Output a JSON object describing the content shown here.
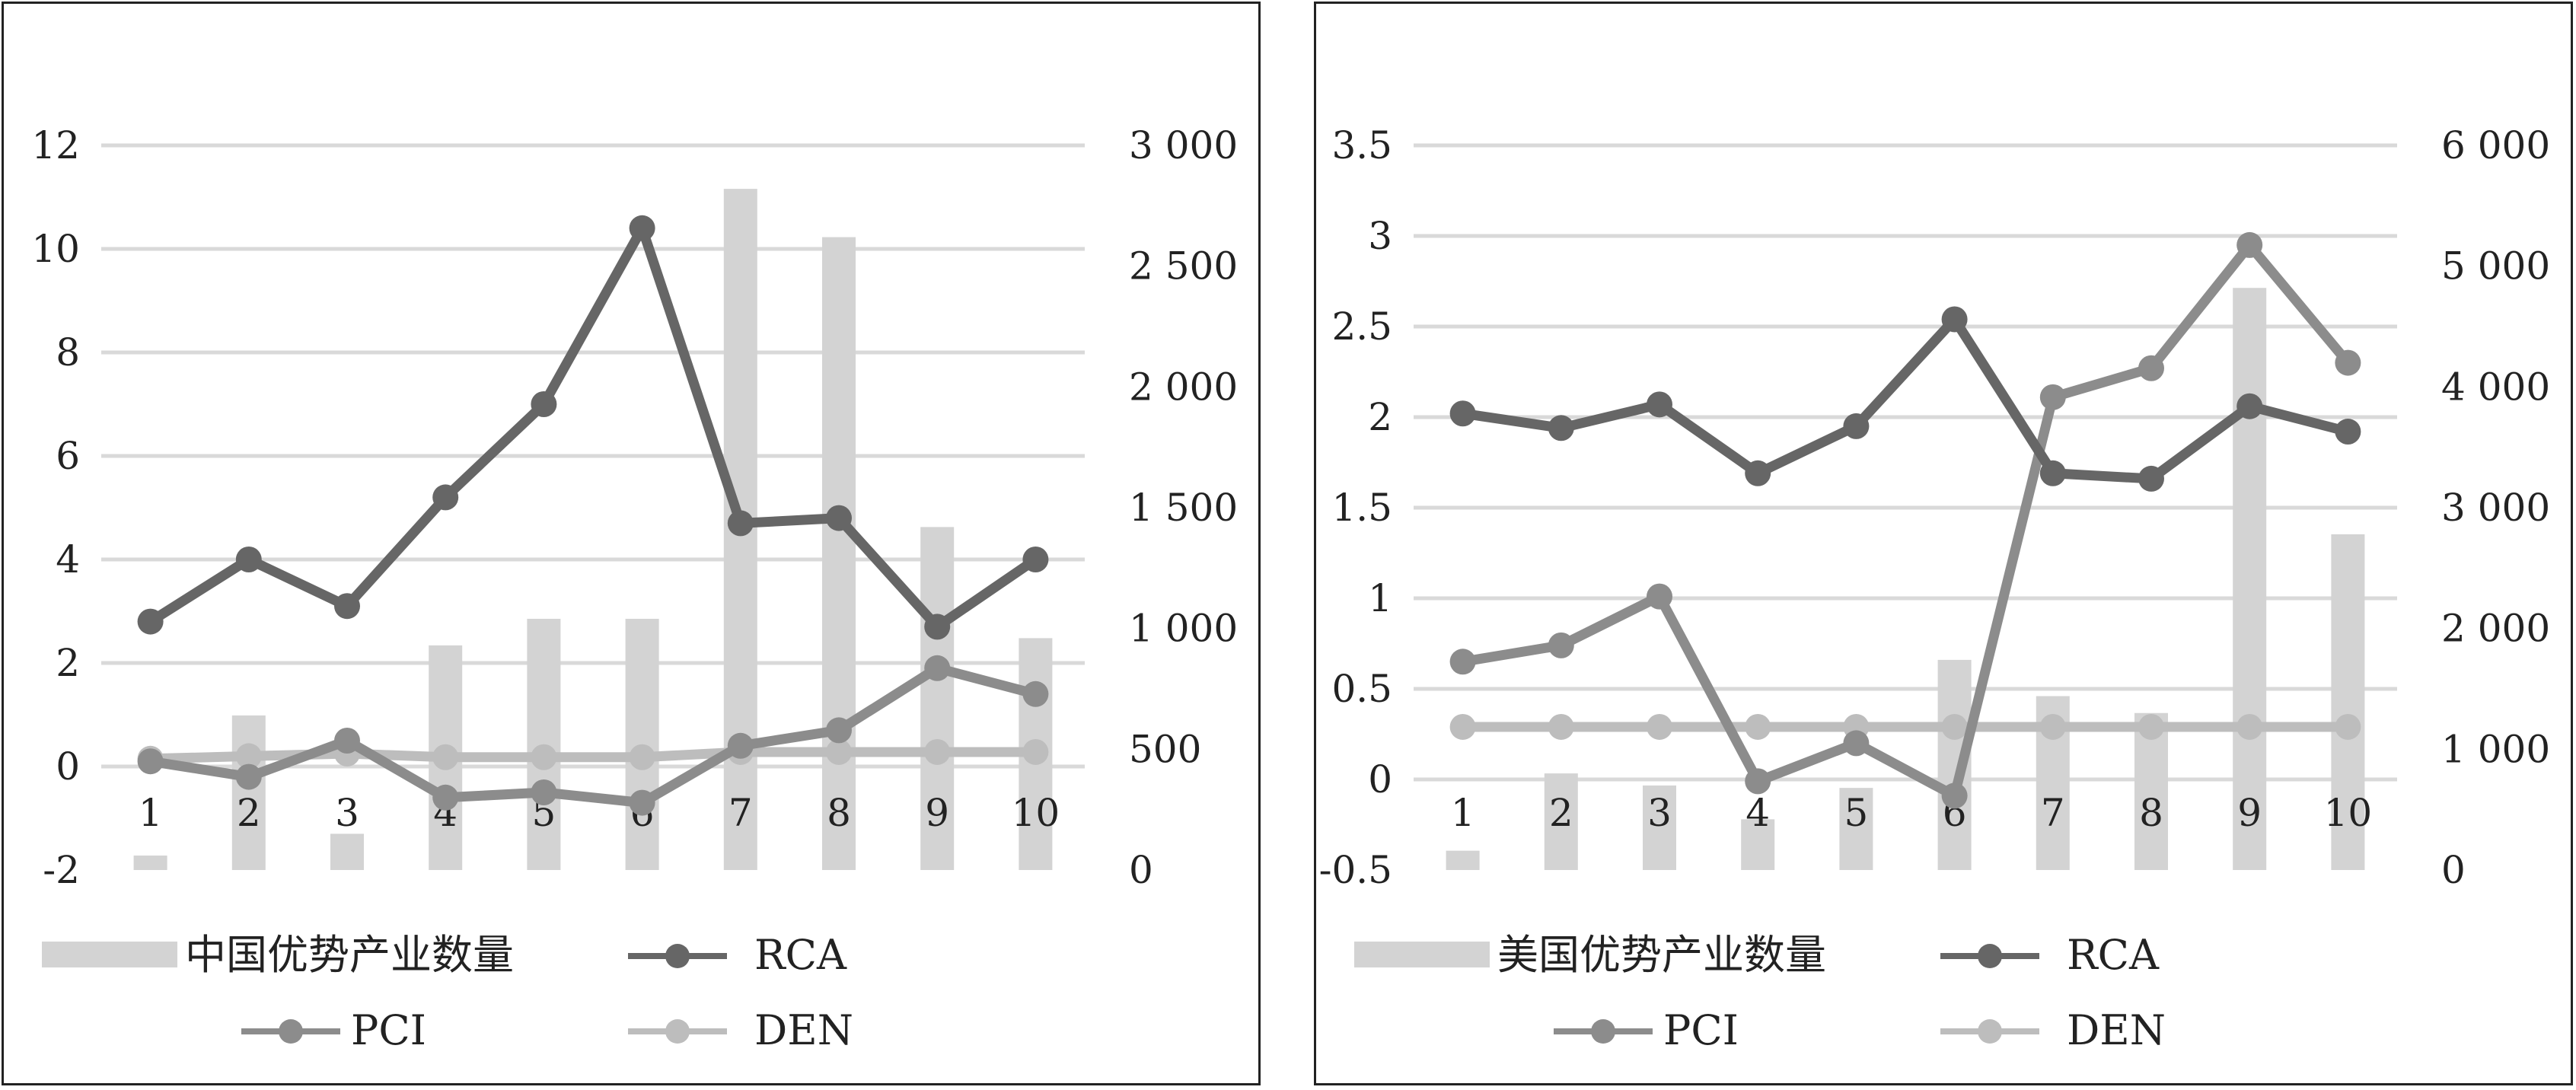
{
  "colors": {
    "bar": "#d3d3d3",
    "grid": "#d9d9d9",
    "rca": "#666666",
    "pci": "#8c8c8c",
    "den": "#bdbdbd",
    "text": "#222222"
  },
  "chart_data": [
    {
      "type": "bar+line",
      "categories": [
        "1",
        "2",
        "3",
        "4",
        "5",
        "6",
        "7",
        "8",
        "9",
        "10"
      ],
      "bar_series": {
        "name": "中国优势产业数量",
        "values": [
          60,
          640,
          150,
          930,
          1040,
          1040,
          2820,
          2620,
          1420,
          960
        ],
        "axis": "right"
      },
      "line_series": [
        {
          "name": "RCA",
          "values": [
            2.8,
            4.0,
            3.1,
            5.2,
            7.0,
            10.4,
            4.7,
            4.8,
            2.7,
            4.0
          ],
          "axis": "left"
        },
        {
          "name": "PCI",
          "values": [
            0.1,
            -0.2,
            0.5,
            -0.6,
            -0.5,
            -0.7,
            0.4,
            0.7,
            1.9,
            1.4
          ],
          "axis": "left"
        },
        {
          "name": "DEN",
          "values": [
            0.15,
            0.2,
            0.25,
            0.18,
            0.18,
            0.18,
            0.28,
            0.28,
            0.28,
            0.28
          ],
          "axis": "left"
        }
      ],
      "y_left": {
        "ticks": [
          12,
          10,
          8,
          6,
          4,
          2,
          0,
          -2
        ],
        "tick_labels": [
          "12",
          "10",
          "8",
          "6",
          "4",
          "2",
          "0",
          "-2"
        ],
        "range": [
          -2,
          12
        ]
      },
      "y_right": {
        "ticks": [
          3000,
          2500,
          2000,
          1500,
          1000,
          500,
          0
        ],
        "tick_labels": [
          "3 000",
          "2 500",
          "2 000",
          "1 500",
          "1 000",
          "500",
          "0"
        ],
        "range": [
          0,
          3000
        ]
      },
      "grid": true,
      "legend": "bottom",
      "legend_labels": {
        "bar": "中国优势产业数量",
        "rca": "RCA",
        "pci": "PCI",
        "den": "DEN"
      }
    },
    {
      "type": "bar+line",
      "categories": [
        "1",
        "2",
        "3",
        "4",
        "5",
        "6",
        "7",
        "8",
        "9",
        "10"
      ],
      "bar_series": {
        "name": "美国优势产业数量",
        "values": [
          160,
          800,
          700,
          420,
          680,
          1740,
          1440,
          1300,
          4820,
          2780
        ],
        "axis": "right"
      },
      "line_series": [
        {
          "name": "RCA",
          "values": [
            2.02,
            1.94,
            2.07,
            1.69,
            1.95,
            2.54,
            1.69,
            1.66,
            2.06,
            1.92
          ],
          "axis": "left"
        },
        {
          "name": "PCI",
          "values": [
            0.65,
            0.74,
            1.01,
            -0.01,
            0.2,
            -0.09,
            2.11,
            2.27,
            2.95,
            2.3
          ],
          "axis": "left"
        },
        {
          "name": "DEN",
          "values": [
            0.29,
            0.29,
            0.29,
            0.29,
            0.29,
            0.29,
            0.29,
            0.29,
            0.29,
            0.29
          ],
          "axis": "left"
        }
      ],
      "y_left": {
        "ticks": [
          3.5,
          3,
          2.5,
          2,
          1.5,
          1,
          0.5,
          0,
          -0.5
        ],
        "tick_labels": [
          "3.5",
          "3",
          "2.5",
          "2",
          "1.5",
          "1",
          "0.5",
          "0",
          "-0.5"
        ],
        "range": [
          -0.5,
          3.5
        ]
      },
      "y_right": {
        "ticks": [
          6000,
          5000,
          4000,
          3000,
          2000,
          1000,
          0
        ],
        "tick_labels": [
          "6 000",
          "5 000",
          "4 000",
          "3 000",
          "2 000",
          "1 000",
          "0"
        ],
        "range": [
          0,
          6000
        ]
      },
      "grid": true,
      "legend": "bottom",
      "legend_labels": {
        "bar": "美国优势产业数量",
        "rca": "RCA",
        "pci": "PCI",
        "den": "DEN"
      }
    }
  ]
}
